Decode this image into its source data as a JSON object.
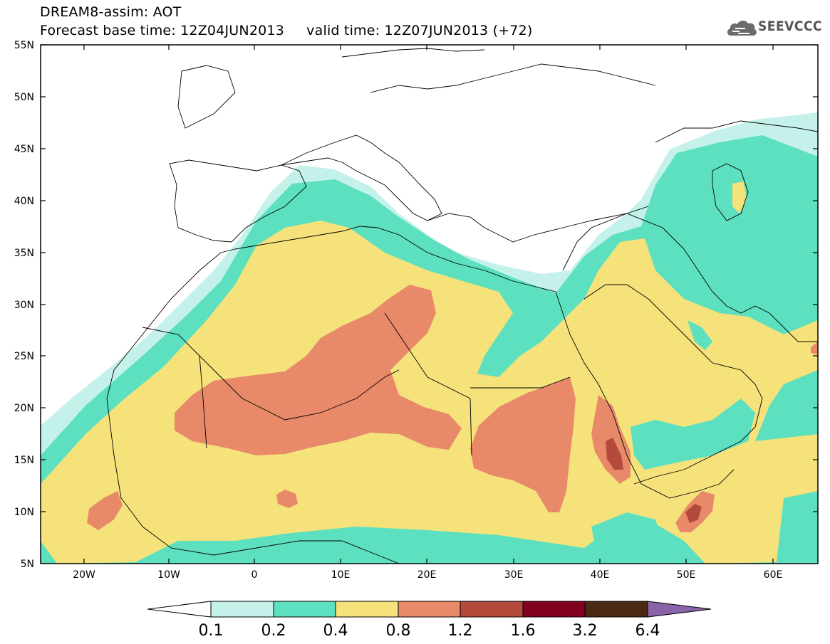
{
  "header": {
    "title": "DREAM8-assim: AOT",
    "subtitle": "Forecast base time: 12Z04JUN2013     valid time: 12Z07JUN2013 (+72)",
    "logo_text": "SEEVCCC"
  },
  "map": {
    "projection": "lat-lon",
    "lon_range": [
      -25,
      65
    ],
    "lat_range": [
      5,
      55
    ],
    "lat_ticks": [
      "55N",
      "50N",
      "45N",
      "40N",
      "35N",
      "30N",
      "25N",
      "20N",
      "15N",
      "10N",
      "5N"
    ],
    "lon_ticks": [
      "20W",
      "10W",
      "0",
      "10E",
      "20E",
      "30E",
      "40E",
      "50E",
      "60E"
    ],
    "background_color": "#ffffff",
    "land_lines": "country and coastline borders"
  },
  "colorbar": {
    "labels": [
      "0.1",
      "0.2",
      "0.4",
      "0.8",
      "1.2",
      "1.6",
      "3.2",
      "6.4"
    ],
    "colors": [
      "#ffffff",
      "#c4f2ea",
      "#5ce0c0",
      "#f5e27a",
      "#e8896a",
      "#b34a3c",
      "#800020",
      "#4a2a14",
      "#8a63a8"
    ]
  }
}
